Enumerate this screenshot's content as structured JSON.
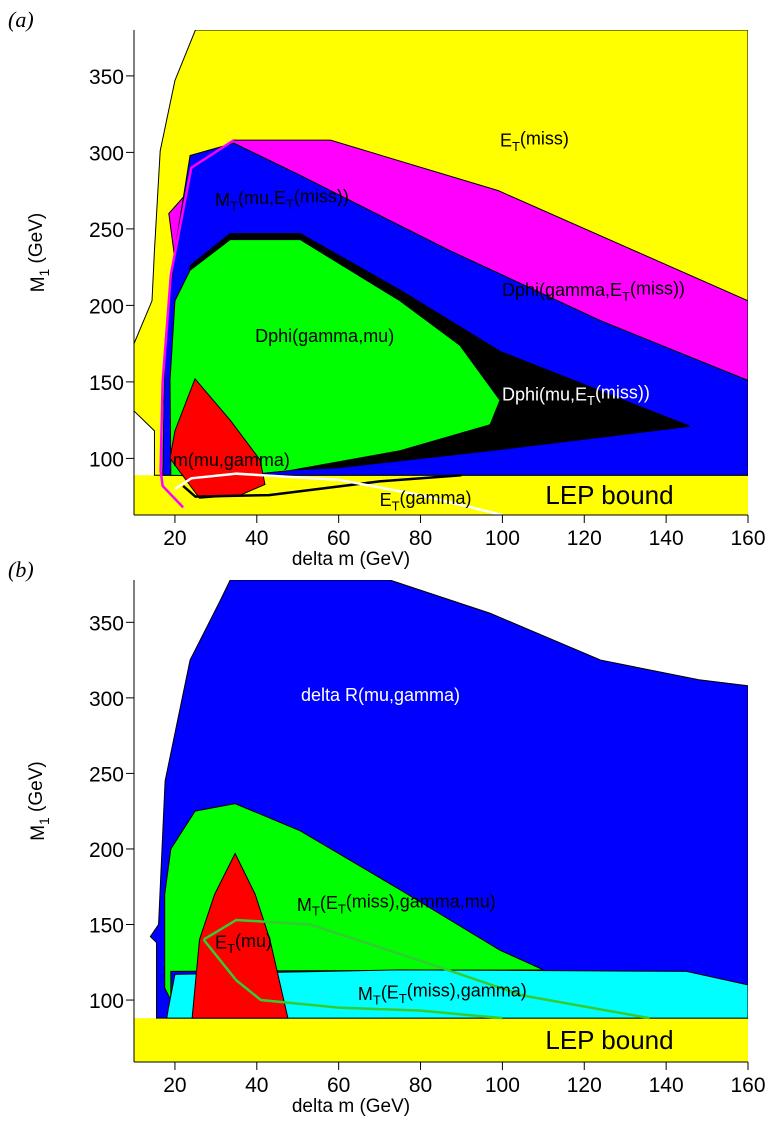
{
  "chart_data": [
    {
      "type": "contour",
      "label": "(a)",
      "xlabel": "delta m (GeV)",
      "ylabel": [
        "M",
        "1",
        " (GeV)"
      ],
      "xlim": [
        10,
        160
      ],
      "ylim": [
        63,
        380
      ],
      "xticks": [
        20,
        40,
        60,
        80,
        100,
        120,
        140,
        160
      ],
      "yticks": [
        100,
        150,
        200,
        250,
        300,
        350
      ],
      "band": {
        "name": "LEP bound",
        "color": "#ffff00",
        "top": 89
      },
      "regions": [
        {
          "color": "#ffff00",
          "x": [
            25,
            160,
            160,
            15,
            15,
            10,
            10,
            14.4,
            15,
            16.4,
            20
          ],
          "y": [
            380,
            380,
            89,
            89,
            118,
            131,
            175,
            203,
            236,
            301,
            347
          ]
        },
        {
          "color": "#ff00ff",
          "x": [
            34.4,
            58,
            99,
            160,
            160,
            30,
            21.5,
            18.5
          ],
          "y": [
            308,
            308,
            275,
            203,
            148,
            148,
            200,
            260
          ]
        },
        {
          "color": "#0000ff",
          "x": [
            23.7,
            34.4,
            50.6,
            87,
            124,
            160,
            160,
            17,
            17.6,
            20
          ],
          "y": [
            298,
            306,
            285,
            236,
            190,
            151,
            89,
            89,
            177,
            236
          ]
        },
        {
          "color": "#000000",
          "x": [
            23.7,
            33.5,
            50.6,
            75,
            99.4,
            124,
            145.8,
            100,
            60,
            25,
            21
          ],
          "y": [
            226,
            247,
            247,
            210,
            170,
            144,
            121,
            106,
            94,
            89,
            150
          ]
        },
        {
          "color": "#00ff00",
          "x": [
            23.7,
            33.5,
            50.6,
            75,
            89.6,
            99.4,
            97,
            75,
            48,
            33.5,
            19,
            18.8,
            20
          ],
          "y": [
            223,
            243,
            243,
            203,
            174,
            138,
            122,
            105,
            92,
            88,
            89,
            151,
            203
          ]
        },
        {
          "color": "#ff0000",
          "x": [
            24.9,
            33.5,
            40.8,
            42,
            36,
            26,
            18.8,
            20
          ],
          "y": [
            152,
            125,
            99,
            83,
            76,
            74,
            100,
            118
          ]
        }
      ],
      "lines": [
        {
          "color": "#ff00ff",
          "x": [
            34.4,
            24,
            19,
            17,
            16.5,
            17,
            22
          ],
          "y": [
            308,
            290,
            220,
            150,
            92,
            82,
            68
          ]
        },
        {
          "color": "#000000",
          "x": [
            22,
            25,
            43,
            70,
            90
          ],
          "y": [
            82,
            75,
            76,
            85,
            89
          ]
        },
        {
          "color": "#ffffff",
          "x": [
            20,
            24,
            35,
            60,
            80,
            100
          ],
          "y": [
            80,
            87,
            90,
            86,
            76,
            63
          ]
        }
      ],
      "annotations": [
        {
          "parts": [
            "E",
            "T",
            "(miss)"
          ],
          "x": 99.4,
          "y": 304,
          "color": "#000000"
        },
        {
          "parts": [
            "M",
            "T",
            "(mu,E",
            "T",
            "(miss))"
          ],
          "x": 29.8,
          "y": 265,
          "color": "#000000"
        },
        {
          "parts": [
            "Dphi(gamma,E",
            "T",
            "(miss))"
          ],
          "x": 99.9,
          "y": 206,
          "color": "#000000"
        },
        {
          "parts": [
            "Dphi(gamma,mu)"
          ],
          "x": 39.6,
          "y": 176,
          "color": "#000000"
        },
        {
          "parts": [
            "Dphi(mu,E",
            "T",
            "(miss))"
          ],
          "x": 99.9,
          "y": 138,
          "color": "#ffffff"
        },
        {
          "parts": [
            "m(mu,gamma)"
          ],
          "x": 19.5,
          "y": 95,
          "color": "#000000"
        },
        {
          "parts": [
            "E",
            "T",
            "(gamma)"
          ],
          "x": 70,
          "y": 69,
          "color": "#000000"
        }
      ]
    },
    {
      "type": "contour",
      "label": "(b)",
      "xlabel": "delta m (GeV)",
      "ylabel": [
        "M",
        "1",
        " (GeV)"
      ],
      "xlim": [
        10,
        160
      ],
      "ylim": [
        59,
        378
      ],
      "xticks": [
        20,
        40,
        60,
        80,
        100,
        120,
        140,
        160
      ],
      "yticks": [
        100,
        150,
        200,
        250,
        300,
        350
      ],
      "band": {
        "name": "LEP bound",
        "color": "#ffff00",
        "top": 88
      },
      "regions": [
        {
          "color": "#0000ff",
          "x": [
            15.5,
            15.5,
            14,
            16,
            17.6,
            23.7,
            31,
            33.5,
            72.5,
            97,
            124,
            148,
            160,
            160
          ],
          "y": [
            88,
            138,
            142,
            150,
            245,
            325,
            364,
            378,
            378,
            356,
            325,
            312,
            308,
            88
          ]
        },
        {
          "color": "#00ff00",
          "x": [
            24.9,
            34.7,
            50.6,
            75,
            99.4,
            110,
            19,
            19,
            17.5,
            17.5,
            19
          ],
          "y": [
            225,
            230,
            212,
            173,
            133,
            120,
            119,
            100,
            108,
            170,
            200
          ]
        },
        {
          "color": "#00ffff",
          "x": [
            18.5,
            20,
            75,
            145,
            160,
            160,
            18
          ],
          "y": [
            96,
            117,
            120,
            119,
            110,
            88,
            88
          ]
        },
        {
          "color": "#ff0000",
          "x": [
            34.7,
            39.6,
            43.2,
            47.6,
            24.2,
            26,
            29.7
          ],
          "y": [
            197,
            170,
            140,
            88,
            88,
            140,
            170
          ]
        }
      ],
      "lines": [
        {
          "color": "#33cc33",
          "x": [
            27,
            35,
            53,
            80,
            105,
            136
          ],
          "y": [
            140,
            153,
            150,
            126,
            103,
            88
          ]
        },
        {
          "color": "#33cc33",
          "x": [
            27,
            35,
            41,
            60,
            80,
            100
          ],
          "y": [
            140,
            113,
            100,
            95,
            93,
            88
          ]
        }
      ],
      "annotations": [
        {
          "parts": [
            "delta R(mu,gamma)"
          ],
          "x": 50.8,
          "y": 298,
          "color": "#ffffff"
        },
        {
          "parts": [
            "M",
            "T",
            "(E",
            "T",
            "(miss),gamma,mu)"
          ],
          "x": 49.8,
          "y": 159,
          "color": "#000000"
        },
        {
          "parts": [
            "E",
            "T",
            "(mu)"
          ],
          "x": 29.8,
          "y": 134,
          "color": "#000000"
        },
        {
          "parts": [
            "M",
            "T",
            "(E",
            "T",
            "(miss),gamma)"
          ],
          "x": 64.7,
          "y": 100,
          "color": "#000000"
        }
      ]
    }
  ]
}
